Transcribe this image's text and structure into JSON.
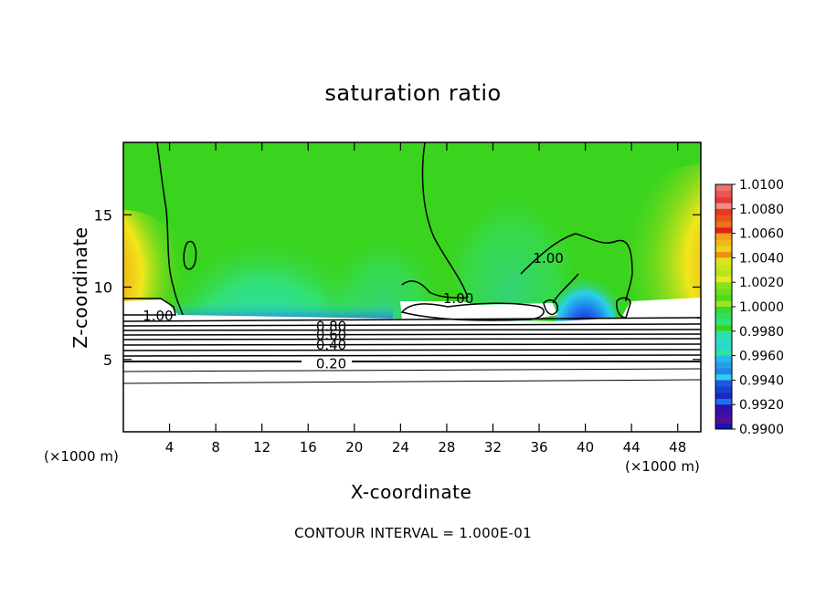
{
  "chart_data": {
    "type": "heatmap",
    "title": "saturation ratio",
    "xlabel": "X-coordinate",
    "ylabel": "Z-coordinate",
    "x_units": "(×1000 m)",
    "y_units": "(×1000 m)",
    "xlim": [
      0,
      50
    ],
    "ylim": [
      0,
      20
    ],
    "x_ticks": [
      4,
      8,
      12,
      16,
      20,
      24,
      28,
      32,
      36,
      40,
      44,
      48
    ],
    "y_ticks": [
      5,
      10,
      15
    ],
    "colorbar": {
      "levels": [
        "0.9900",
        "0.9920",
        "0.9940",
        "0.9960",
        "0.9980",
        "1.0000",
        "1.0020",
        "1.0040",
        "1.0060",
        "1.0080",
        "1.0100"
      ],
      "colors": [
        "#6a0a8a",
        "#1414b4",
        "#1e6ef0",
        "#2ad2e6",
        "#2ee69a",
        "#3ad41e",
        "#a0e61a",
        "#f0e61a",
        "#f08c1a",
        "#e61e1e",
        "#f08c8c"
      ]
    },
    "contour_labels": [
      {
        "text": "1.00",
        "x": 29,
        "y": 9.2
      },
      {
        "text": "1.00",
        "x": 36.8,
        "y": 12.0
      },
      {
        "text": "1.00",
        "x": 3.0,
        "y": 8.0
      },
      {
        "text": "0.80",
        "x": 18.0,
        "y": 7.3
      },
      {
        "text": "0.60",
        "x": 18.0,
        "y": 6.7
      },
      {
        "text": "0.40",
        "x": 18.0,
        "y": 6.0
      },
      {
        "text": "0.20",
        "x": 18.0,
        "y": 4.7
      }
    ],
    "grid": false,
    "footer": "CONTOUR INTERVAL = 1.000E-01"
  }
}
